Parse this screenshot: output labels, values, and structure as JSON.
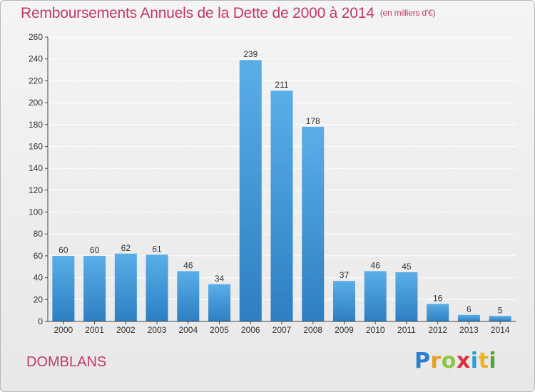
{
  "header": {
    "title": "Remboursements Annuels de la Dette de 2000 à 2014",
    "unit": "(en milliers d'€)"
  },
  "footer": {
    "commune": "DOMBLANS",
    "logo_letters": [
      "P",
      "r",
      "o",
      "x",
      "i",
      "t",
      "i"
    ],
    "logo_colors": [
      "#2a7fd4",
      "#e8a020",
      "#8cc63f",
      "#e03040",
      "#2a9fd6",
      "#f0b020",
      "#4aa832"
    ]
  },
  "colors": {
    "title": "#c03a62",
    "bar_light": "#5aaee8",
    "bar_dark": "#2d7fc2",
    "grid": "#ffffff",
    "axis": "#444444"
  },
  "chart_data": {
    "type": "bar",
    "title": "Remboursements Annuels de la Dette de 2000 à 2014",
    "ylabel": "",
    "xlabel": "",
    "ylim": [
      0,
      260
    ],
    "yticks": [
      0,
      20,
      40,
      60,
      80,
      100,
      120,
      140,
      160,
      180,
      200,
      220,
      240,
      260
    ],
    "categories": [
      "2000",
      "2001",
      "2002",
      "2003",
      "2004",
      "2005",
      "2006",
      "2007",
      "2008",
      "2009",
      "2010",
      "2011",
      "2012",
      "2013",
      "2014"
    ],
    "values": [
      60,
      60,
      62,
      61,
      46,
      34,
      239,
      211,
      178,
      37,
      46,
      45,
      16,
      6,
      5
    ],
    "grid": true
  }
}
